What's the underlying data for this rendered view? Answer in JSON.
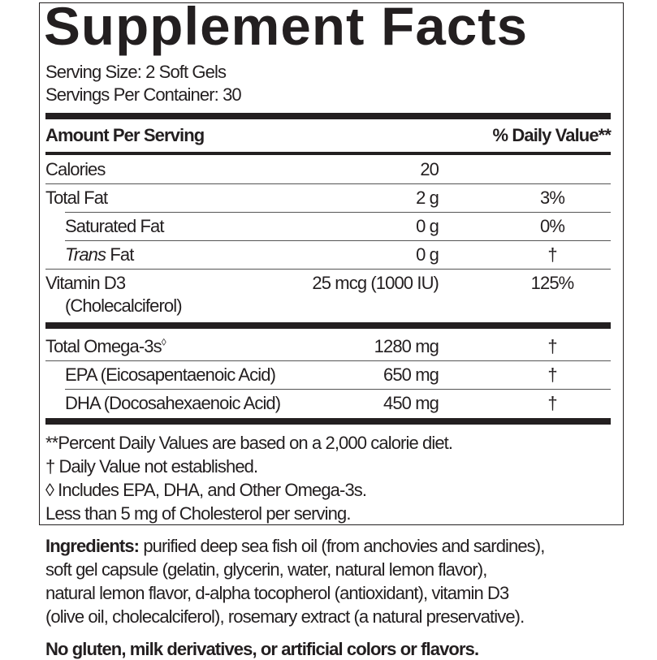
{
  "title": "Supplement Facts",
  "serving_size": "Serving Size: 2 Soft Gels",
  "servings_per_container": "Servings Per Container: 30",
  "header": {
    "amount": "Amount Per Serving",
    "dv": "% Daily Value**"
  },
  "rows": [
    {
      "name": "Calories",
      "amount": "20",
      "dv": ""
    },
    {
      "name": "Total Fat",
      "amount": "2 g",
      "dv": "3%"
    },
    {
      "name": "Saturated Fat",
      "amount": "0 g",
      "dv": "0%"
    },
    {
      "name_italic": "Trans",
      "name": " Fat",
      "amount": "0 g",
      "dv": "†"
    },
    {
      "name": "Vitamin D3",
      "name2": "(Cholecalciferol)",
      "amount": "25 mcg (1000 IU)",
      "dv": "125%"
    }
  ],
  "omega_rows": [
    {
      "name": "Total Omega-3s",
      "mark": "◊",
      "amount": "1280 mg",
      "dv": "†"
    },
    {
      "name": "EPA (Eicosapentaenoic Acid)",
      "amount": "650 mg",
      "dv": "†"
    },
    {
      "name": "DHA (Docosahexaenoic Acid)",
      "amount": "450 mg",
      "dv": "†"
    }
  ],
  "footnotes": [
    "**Percent Daily Values are based on a 2,000 calorie diet.",
    "† Daily Value not established.",
    "◊ Includes EPA, DHA, and Other Omega-3s.",
    "Less than 5 mg of Cholesterol per serving."
  ],
  "ingredients": {
    "label": "Ingredients:",
    "lines": [
      " purified deep sea fish oil (from anchovies and sardines),",
      "soft gel capsule (gelatin, glycerin, water, natural lemon flavor),",
      "natural lemon flavor, d-alpha tocopherol (antioxidant), vitamin D3",
      "(olive oil, cholecalciferol), rosemary extract (a natural preservative)."
    ]
  },
  "allergen_statement": "No gluten, milk derivatives, or artificial colors or flavors."
}
